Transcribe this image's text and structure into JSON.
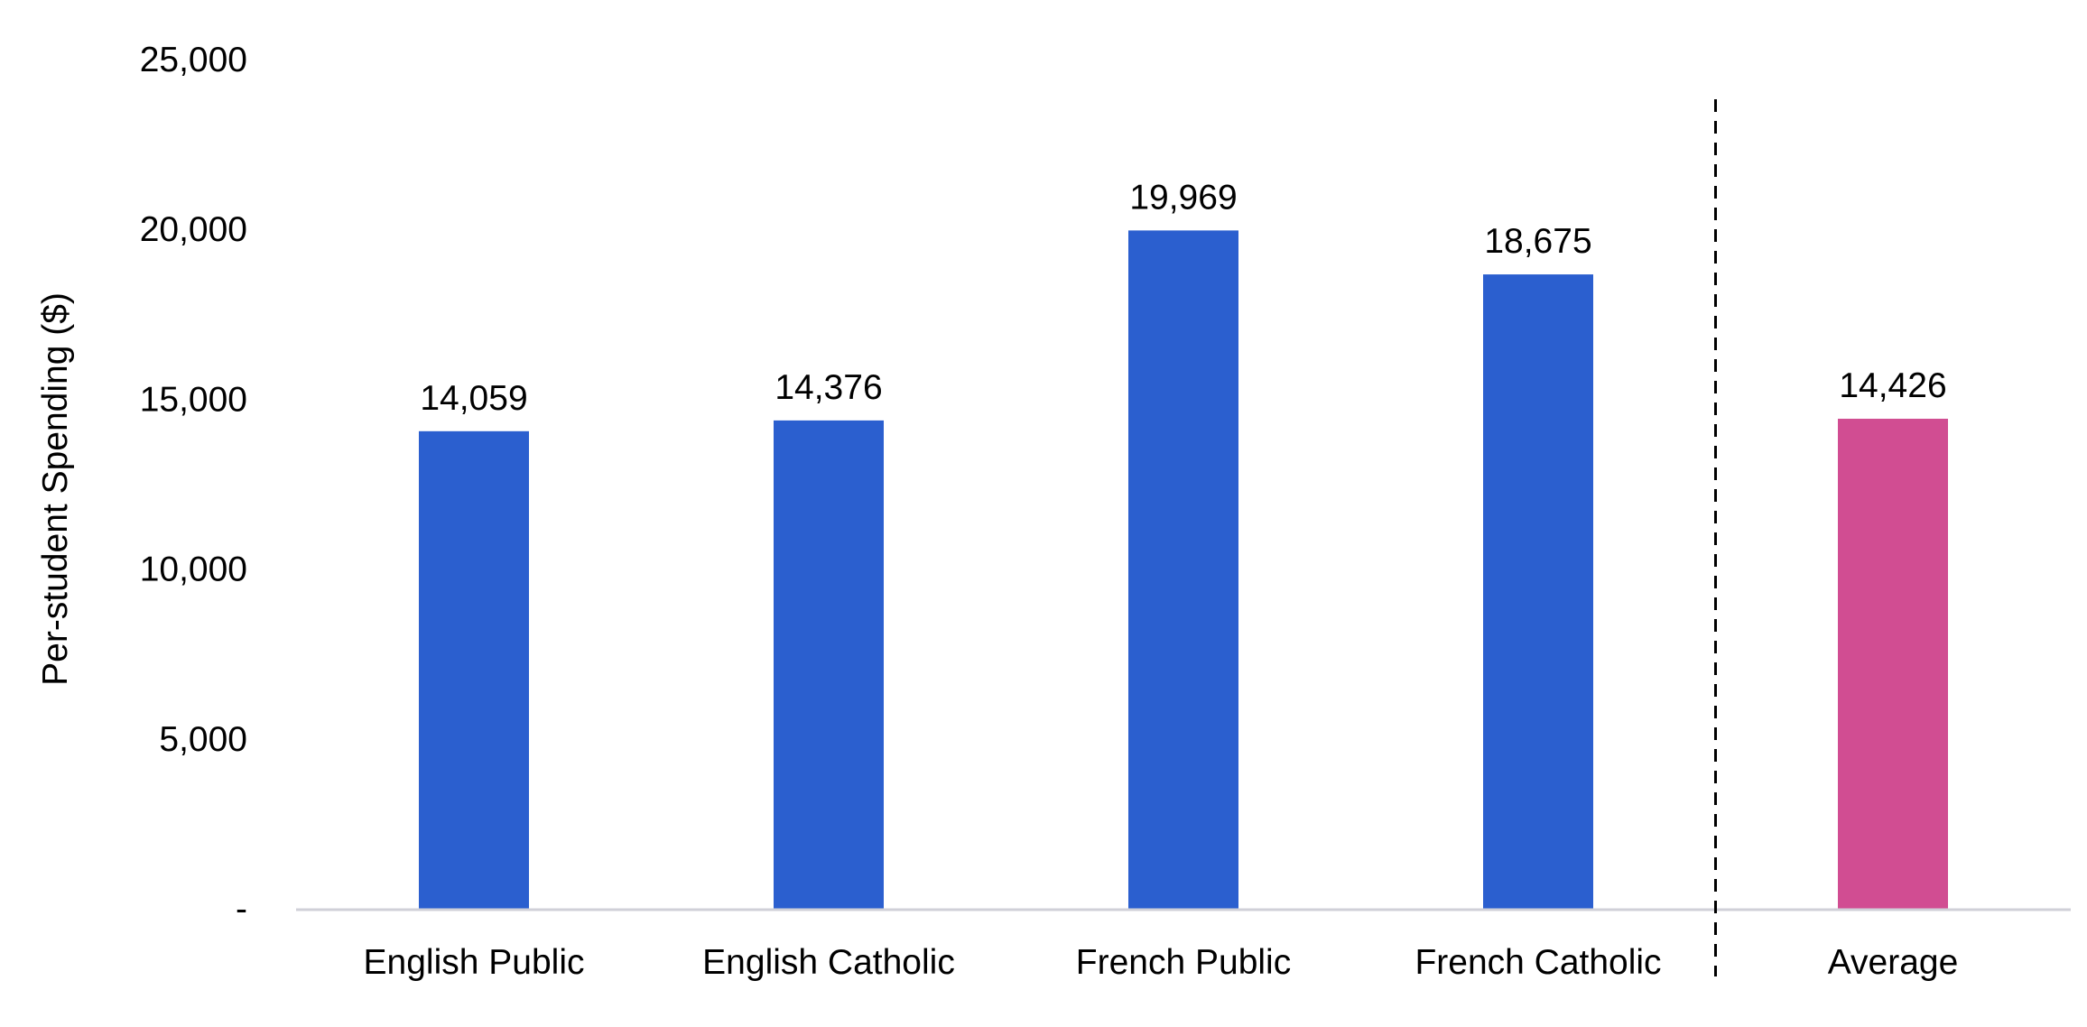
{
  "chart_data": {
    "type": "bar",
    "title": "",
    "xlabel": "",
    "ylabel": "Per-student Spending ($)",
    "ylim": [
      0,
      25000
    ],
    "y_ticks": [
      0,
      5000,
      10000,
      15000,
      20000,
      25000
    ],
    "y_tick_labels": [
      "-",
      "5,000",
      "10,000",
      "15,000",
      "20,000",
      "25,000"
    ],
    "categories": [
      "English Public",
      "English Catholic",
      "French Public",
      "French Catholic",
      "Average"
    ],
    "values": [
      14059,
      14376,
      19969,
      18675,
      14426
    ],
    "data_labels": [
      "14,059",
      "14,376",
      "19,969",
      "18,675",
      "14,426"
    ],
    "bar_colors": [
      "#2b5fcf",
      "#2b5fcf",
      "#2b5fcf",
      "#2b5fcf",
      "#d14d92"
    ],
    "grid": false,
    "legend": "none",
    "separator": {
      "style": "dashed",
      "between": [
        "French Catholic",
        "Average"
      ]
    }
  },
  "colors": {
    "bar_primary": "#2b5fcf",
    "bar_average": "#d14d92",
    "axis_line": "#d0d0d8",
    "separator": "#000000"
  }
}
